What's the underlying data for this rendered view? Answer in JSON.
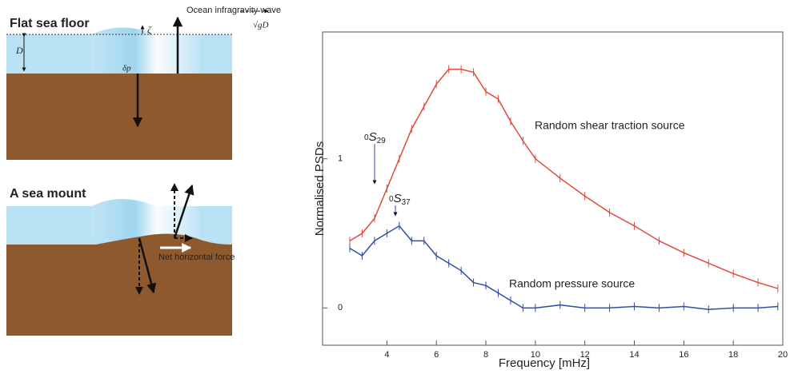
{
  "diagram": {
    "top_title": "Flat sea floor",
    "wave_label": "Ocean infragravity wave",
    "speed_label": "√gD",
    "elevation_label": "ζ",
    "depth_label": "D",
    "pressure_label": "δp",
    "bottom_title": "A sea mount",
    "force_label": "Net horizontal force"
  },
  "chart_data": {
    "type": "line",
    "xlabel": "Frequency [mHz]",
    "ylabel": "Normalised PSDs",
    "x": [
      2.5,
      3,
      3.5,
      4,
      4.5,
      5,
      5.5,
      6,
      6.5,
      7,
      7.5,
      8,
      8.5,
      9,
      9.5,
      10,
      11,
      12,
      13,
      14,
      15,
      16,
      17,
      18,
      19,
      19.8
    ],
    "series": [
      {
        "name": "Random shear traction source",
        "color": "#e04a3a",
        "values": [
          0.45,
          0.5,
          0.6,
          0.8,
          1.0,
          1.2,
          1.35,
          1.5,
          1.6,
          1.6,
          1.58,
          1.45,
          1.4,
          1.25,
          1.12,
          1.0,
          0.87,
          0.75,
          0.64,
          0.55,
          0.45,
          0.37,
          0.3,
          0.23,
          0.17,
          0.13
        ]
      },
      {
        "name": "Random pressure source",
        "color": "#2f4ea3",
        "values": [
          0.4,
          0.35,
          0.45,
          0.5,
          0.55,
          0.45,
          0.45,
          0.35,
          0.3,
          0.25,
          0.17,
          0.15,
          0.1,
          0.05,
          0.0,
          0.0,
          0.02,
          0.0,
          0.0,
          0.01,
          0.0,
          0.01,
          -0.01,
          0.0,
          0.0,
          0.01
        ]
      }
    ],
    "annotations": [
      {
        "prefix": "0",
        "symbol": "S",
        "index": "29"
      },
      {
        "prefix": "0",
        "symbol": "S",
        "index": "37"
      }
    ],
    "xlim": [
      1.4,
      20
    ],
    "xticks": [
      4,
      6,
      8,
      10,
      12,
      14,
      16,
      18,
      20
    ],
    "ylim": [
      -0.25,
      1.85
    ],
    "yticks": [
      0,
      1
    ],
    "grid": false
  }
}
